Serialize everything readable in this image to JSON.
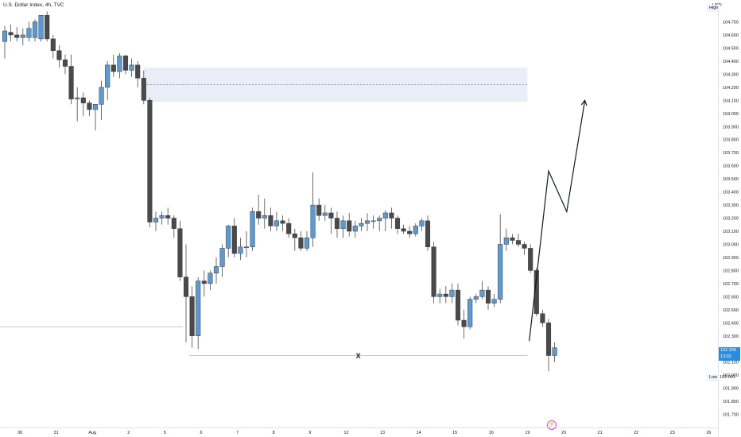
{
  "header": {
    "symbol_title": "U.S. Dollar Index, 4h, TVC",
    "currency": "USD",
    "high_label": "High",
    "low_label": "Low",
    "low_value": "102.001",
    "last_price": "102.206",
    "countdown": "13:02"
  },
  "annotations": {
    "liquidity_marker": "X"
  },
  "icons": {
    "bolt": "lightning-bolt-icon"
  },
  "colors": {
    "bull": "#5b9bd5",
    "bear": "#4a4a4a",
    "zone_fill": "#e8edf7",
    "price_badge": "#2a8cdc",
    "bolt": "#e040fb"
  },
  "chart_data": {
    "type": "candlestick",
    "symbol": "U.S. Dollar Index",
    "interval": "4h",
    "source": "TVC",
    "ylim": [
      101.7,
      104.75
    ],
    "y_ticks": [
      "104.700",
      "104.600",
      "104.500",
      "104.400",
      "104.300",
      "104.200",
      "104.100",
      "104.000",
      "103.900",
      "103.800",
      "103.700",
      "103.600",
      "103.500",
      "103.400",
      "103.300",
      "103.200",
      "103.100",
      "103.000",
      "102.900",
      "102.800",
      "102.700",
      "102.600",
      "102.500",
      "102.400",
      "102.300",
      "102.200",
      "102.100",
      "102.000",
      "101.900",
      "101.800",
      "101.700"
    ],
    "x_ticks": [
      {
        "label": "30",
        "t": 0
      },
      {
        "label": "31",
        "t": 6
      },
      {
        "label": "Aug",
        "t": 12
      },
      {
        "label": "2",
        "t": 18
      },
      {
        "label": "5",
        "t": 24
      },
      {
        "label": "6",
        "t": 30
      },
      {
        "label": "7",
        "t": 36
      },
      {
        "label": "8",
        "t": 42
      },
      {
        "label": "9",
        "t": 48
      },
      {
        "label": "12",
        "t": 54
      },
      {
        "label": "13",
        "t": 60
      },
      {
        "label": "14",
        "t": 66
      },
      {
        "label": "15",
        "t": 72
      },
      {
        "label": "16",
        "t": 78
      },
      {
        "label": "19",
        "t": 84
      },
      {
        "label": "20",
        "t": 90
      },
      {
        "label": "21",
        "t": 96
      },
      {
        "label": "22",
        "t": 102
      },
      {
        "label": "23",
        "t": 108
      },
      {
        "label": "26",
        "t": 114
      }
    ],
    "candles": [
      {
        "o": 104.55,
        "h": 104.67,
        "l": 104.42,
        "c": 104.63
      },
      {
        "o": 104.62,
        "h": 104.68,
        "l": 104.55,
        "c": 104.6
      },
      {
        "o": 104.6,
        "h": 104.66,
        "l": 104.55,
        "c": 104.58
      },
      {
        "o": 104.58,
        "h": 104.65,
        "l": 104.52,
        "c": 104.6
      },
      {
        "o": 104.58,
        "h": 104.7,
        "l": 104.55,
        "c": 104.65
      },
      {
        "o": 104.58,
        "h": 104.72,
        "l": 104.55,
        "c": 104.7
      },
      {
        "o": 104.57,
        "h": 104.75,
        "l": 104.55,
        "c": 104.75
      },
      {
        "o": 104.75,
        "h": 104.78,
        "l": 104.55,
        "c": 104.57
      },
      {
        "o": 104.57,
        "h": 104.6,
        "l": 104.42,
        "c": 104.48
      },
      {
        "o": 104.48,
        "h": 104.52,
        "l": 104.35,
        "c": 104.41
      },
      {
        "o": 104.41,
        "h": 104.45,
        "l": 104.3,
        "c": 104.36
      },
      {
        "o": 104.36,
        "h": 104.45,
        "l": 104.07,
        "c": 104.11
      },
      {
        "o": 104.11,
        "h": 104.2,
        "l": 103.94,
        "c": 104.12
      },
      {
        "o": 104.12,
        "h": 104.16,
        "l": 103.98,
        "c": 104.08
      },
      {
        "o": 104.08,
        "h": 104.1,
        "l": 103.98,
        "c": 104.03
      },
      {
        "o": 104.03,
        "h": 104.07,
        "l": 103.87,
        "c": 104.07
      },
      {
        "o": 104.07,
        "h": 104.25,
        "l": 103.95,
        "c": 104.2
      },
      {
        "o": 104.2,
        "h": 104.4,
        "l": 104.1,
        "c": 104.37
      },
      {
        "o": 104.37,
        "h": 104.45,
        "l": 104.28,
        "c": 104.32
      },
      {
        "o": 104.32,
        "h": 104.46,
        "l": 104.27,
        "c": 104.44
      },
      {
        "o": 104.44,
        "h": 104.45,
        "l": 104.3,
        "c": 104.33
      },
      {
        "o": 104.33,
        "h": 104.42,
        "l": 104.28,
        "c": 104.37
      },
      {
        "o": 104.37,
        "h": 104.4,
        "l": 104.2,
        "c": 104.27
      },
      {
        "o": 104.27,
        "h": 104.33,
        "l": 104.07,
        "c": 104.1
      },
      {
        "o": 104.1,
        "h": 104.12,
        "l": 103.13,
        "c": 103.17
      },
      {
        "o": 103.17,
        "h": 103.25,
        "l": 103.1,
        "c": 103.2
      },
      {
        "o": 103.2,
        "h": 103.25,
        "l": 103.15,
        "c": 103.22
      },
      {
        "o": 103.22,
        "h": 103.28,
        "l": 103.15,
        "c": 103.2
      },
      {
        "o": 103.2,
        "h": 103.22,
        "l": 103.05,
        "c": 103.12
      },
      {
        "o": 103.12,
        "h": 103.18,
        "l": 102.72,
        "c": 102.75
      },
      {
        "o": 102.75,
        "h": 103.0,
        "l": 102.25,
        "c": 102.6
      },
      {
        "o": 102.6,
        "h": 102.68,
        "l": 102.21,
        "c": 102.3
      },
      {
        "o": 102.3,
        "h": 102.75,
        "l": 102.2,
        "c": 102.72
      },
      {
        "o": 102.72,
        "h": 102.8,
        "l": 102.6,
        "c": 102.7
      },
      {
        "o": 102.7,
        "h": 102.8,
        "l": 102.65,
        "c": 102.78
      },
      {
        "o": 102.78,
        "h": 102.9,
        "l": 102.7,
        "c": 102.83
      },
      {
        "o": 102.83,
        "h": 103.0,
        "l": 102.75,
        "c": 102.97
      },
      {
        "o": 102.97,
        "h": 103.15,
        "l": 102.9,
        "c": 103.14
      },
      {
        "o": 103.14,
        "h": 103.2,
        "l": 102.9,
        "c": 102.93
      },
      {
        "o": 102.93,
        "h": 103.05,
        "l": 102.88,
        "c": 102.98
      },
      {
        "o": 102.98,
        "h": 103.1,
        "l": 102.9,
        "c": 102.98
      },
      {
        "o": 102.98,
        "h": 103.28,
        "l": 102.95,
        "c": 103.25
      },
      {
        "o": 103.25,
        "h": 103.38,
        "l": 103.15,
        "c": 103.2
      },
      {
        "o": 103.2,
        "h": 103.35,
        "l": 103.12,
        "c": 103.22
      },
      {
        "o": 103.22,
        "h": 103.28,
        "l": 103.1,
        "c": 103.14
      },
      {
        "o": 103.14,
        "h": 103.25,
        "l": 103.1,
        "c": 103.18
      },
      {
        "o": 103.18,
        "h": 103.22,
        "l": 103.1,
        "c": 103.16
      },
      {
        "o": 103.16,
        "h": 103.2,
        "l": 103.05,
        "c": 103.08
      },
      {
        "o": 103.08,
        "h": 103.12,
        "l": 102.95,
        "c": 103.05
      },
      {
        "o": 103.05,
        "h": 103.1,
        "l": 102.95,
        "c": 102.97
      },
      {
        "o": 102.97,
        "h": 103.1,
        "l": 102.95,
        "c": 103.05
      },
      {
        "o": 103.05,
        "h": 103.55,
        "l": 102.98,
        "c": 103.3
      },
      {
        "o": 103.3,
        "h": 103.35,
        "l": 103.18,
        "c": 103.22
      },
      {
        "o": 103.22,
        "h": 103.3,
        "l": 103.18,
        "c": 103.24
      },
      {
        "o": 103.24,
        "h": 103.28,
        "l": 103.08,
        "c": 103.2
      },
      {
        "o": 103.2,
        "h": 103.25,
        "l": 103.05,
        "c": 103.12
      },
      {
        "o": 103.12,
        "h": 103.22,
        "l": 103.05,
        "c": 103.18
      },
      {
        "o": 103.18,
        "h": 103.24,
        "l": 103.06,
        "c": 103.1
      },
      {
        "o": 103.1,
        "h": 103.18,
        "l": 103.05,
        "c": 103.14
      },
      {
        "o": 103.14,
        "h": 103.2,
        "l": 103.1,
        "c": 103.16
      },
      {
        "o": 103.16,
        "h": 103.24,
        "l": 103.1,
        "c": 103.18
      },
      {
        "o": 103.18,
        "h": 103.22,
        "l": 103.12,
        "c": 103.18
      },
      {
        "o": 103.18,
        "h": 103.22,
        "l": 103.1,
        "c": 103.2
      },
      {
        "o": 103.2,
        "h": 103.26,
        "l": 103.1,
        "c": 103.24
      },
      {
        "o": 103.24,
        "h": 103.28,
        "l": 103.12,
        "c": 103.2
      },
      {
        "o": 103.2,
        "h": 103.22,
        "l": 103.08,
        "c": 103.12
      },
      {
        "o": 103.12,
        "h": 103.15,
        "l": 103.08,
        "c": 103.1
      },
      {
        "o": 103.1,
        "h": 103.14,
        "l": 103.05,
        "c": 103.08
      },
      {
        "o": 103.08,
        "h": 103.16,
        "l": 103.06,
        "c": 103.14
      },
      {
        "o": 103.14,
        "h": 103.2,
        "l": 103.1,
        "c": 103.18
      },
      {
        "o": 103.18,
        "h": 103.22,
        "l": 102.95,
        "c": 102.98
      },
      {
        "o": 102.98,
        "h": 103.02,
        "l": 102.55,
        "c": 102.6
      },
      {
        "o": 102.6,
        "h": 102.66,
        "l": 102.55,
        "c": 102.62
      },
      {
        "o": 102.62,
        "h": 102.68,
        "l": 102.55,
        "c": 102.6
      },
      {
        "o": 102.6,
        "h": 102.7,
        "l": 102.55,
        "c": 102.65
      },
      {
        "o": 102.65,
        "h": 102.7,
        "l": 102.38,
        "c": 102.42
      },
      {
        "o": 102.42,
        "h": 102.5,
        "l": 102.28,
        "c": 102.37
      },
      {
        "o": 102.37,
        "h": 102.6,
        "l": 102.35,
        "c": 102.58
      },
      {
        "o": 102.58,
        "h": 102.62,
        "l": 102.55,
        "c": 102.6
      },
      {
        "o": 102.6,
        "h": 102.72,
        "l": 102.58,
        "c": 102.65
      },
      {
        "o": 102.65,
        "h": 102.68,
        "l": 102.5,
        "c": 102.55
      },
      {
        "o": 102.55,
        "h": 102.62,
        "l": 102.52,
        "c": 102.58
      },
      {
        "o": 102.58,
        "h": 103.23,
        "l": 102.55,
        "c": 103.0
      },
      {
        "o": 103.0,
        "h": 103.12,
        "l": 102.95,
        "c": 103.05
      },
      {
        "o": 103.05,
        "h": 103.08,
        "l": 103.0,
        "c": 103.03
      },
      {
        "o": 103.03,
        "h": 103.08,
        "l": 102.98,
        "c": 103.0
      },
      {
        "o": 103.0,
        "h": 103.02,
        "l": 102.92,
        "c": 102.97
      },
      {
        "o": 102.97,
        "h": 103.0,
        "l": 102.78,
        "c": 102.8
      },
      {
        "o": 102.8,
        "h": 102.82,
        "l": 102.45,
        "c": 102.47
      },
      {
        "o": 102.47,
        "h": 102.5,
        "l": 102.37,
        "c": 102.4
      },
      {
        "o": 102.4,
        "h": 102.43,
        "l": 102.03,
        "c": 102.15
      },
      {
        "o": 102.15,
        "h": 102.25,
        "l": 102.1,
        "c": 102.21
      }
    ],
    "supply_zone": {
      "from_t": 23,
      "to_t": 86.5,
      "top": 104.35,
      "bottom": 104.09,
      "mid": 104.22
    },
    "lows_line": {
      "from_t": 30.5,
      "to_t": 86.5,
      "price": 102.15
    },
    "left_line": {
      "from_t": -4,
      "to_t": 29.5,
      "price": 102.37
    },
    "projection": [
      {
        "t": 86.8,
        "price": 102.26
      },
      {
        "t": 90,
        "price": 103.56
      },
      {
        "t": 93,
        "price": 103.25
      },
      {
        "t": 96,
        "price": 104.1
      }
    ]
  }
}
